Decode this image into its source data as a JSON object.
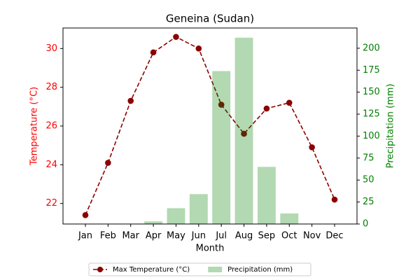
{
  "chart_data": {
    "type": "line",
    "title": "Geneina (Sudan)",
    "x_label": "Month",
    "y_label": "Temperature (°C)",
    "y2_label": "Precipitation (mm)",
    "categories": [
      "Jan",
      "Feb",
      "Mar",
      "Apr",
      "May",
      "Jun",
      "Jul",
      "Aug",
      "Sep",
      "Oct",
      "Nov",
      "Dec"
    ],
    "series": [
      {
        "name": "Max Temperature (°C)",
        "type": "line",
        "color": "#8b0000",
        "axis": "y",
        "values": [
          21.4,
          24.1,
          27.3,
          29.8,
          30.6,
          30.0,
          27.1,
          25.6,
          26.9,
          27.2,
          24.9,
          22.2
        ]
      },
      {
        "name": "Precipitation (mm)",
        "type": "bar",
        "color": "#008000",
        "axis": "y2",
        "values": [
          0,
          0,
          0,
          3,
          18,
          34,
          174,
          212,
          65,
          12,
          0,
          0
        ]
      }
    ],
    "ylim": [
      20.94,
      31.06
    ],
    "yticks": [
      22,
      24,
      26,
      28,
      30
    ],
    "y_color": "#ff0000",
    "y2lim": [
      0,
      223
    ],
    "y2ticks": [
      0,
      25,
      50,
      75,
      100,
      125,
      150,
      175,
      200
    ],
    "y2_color": "#008000",
    "legend": "bottom"
  }
}
